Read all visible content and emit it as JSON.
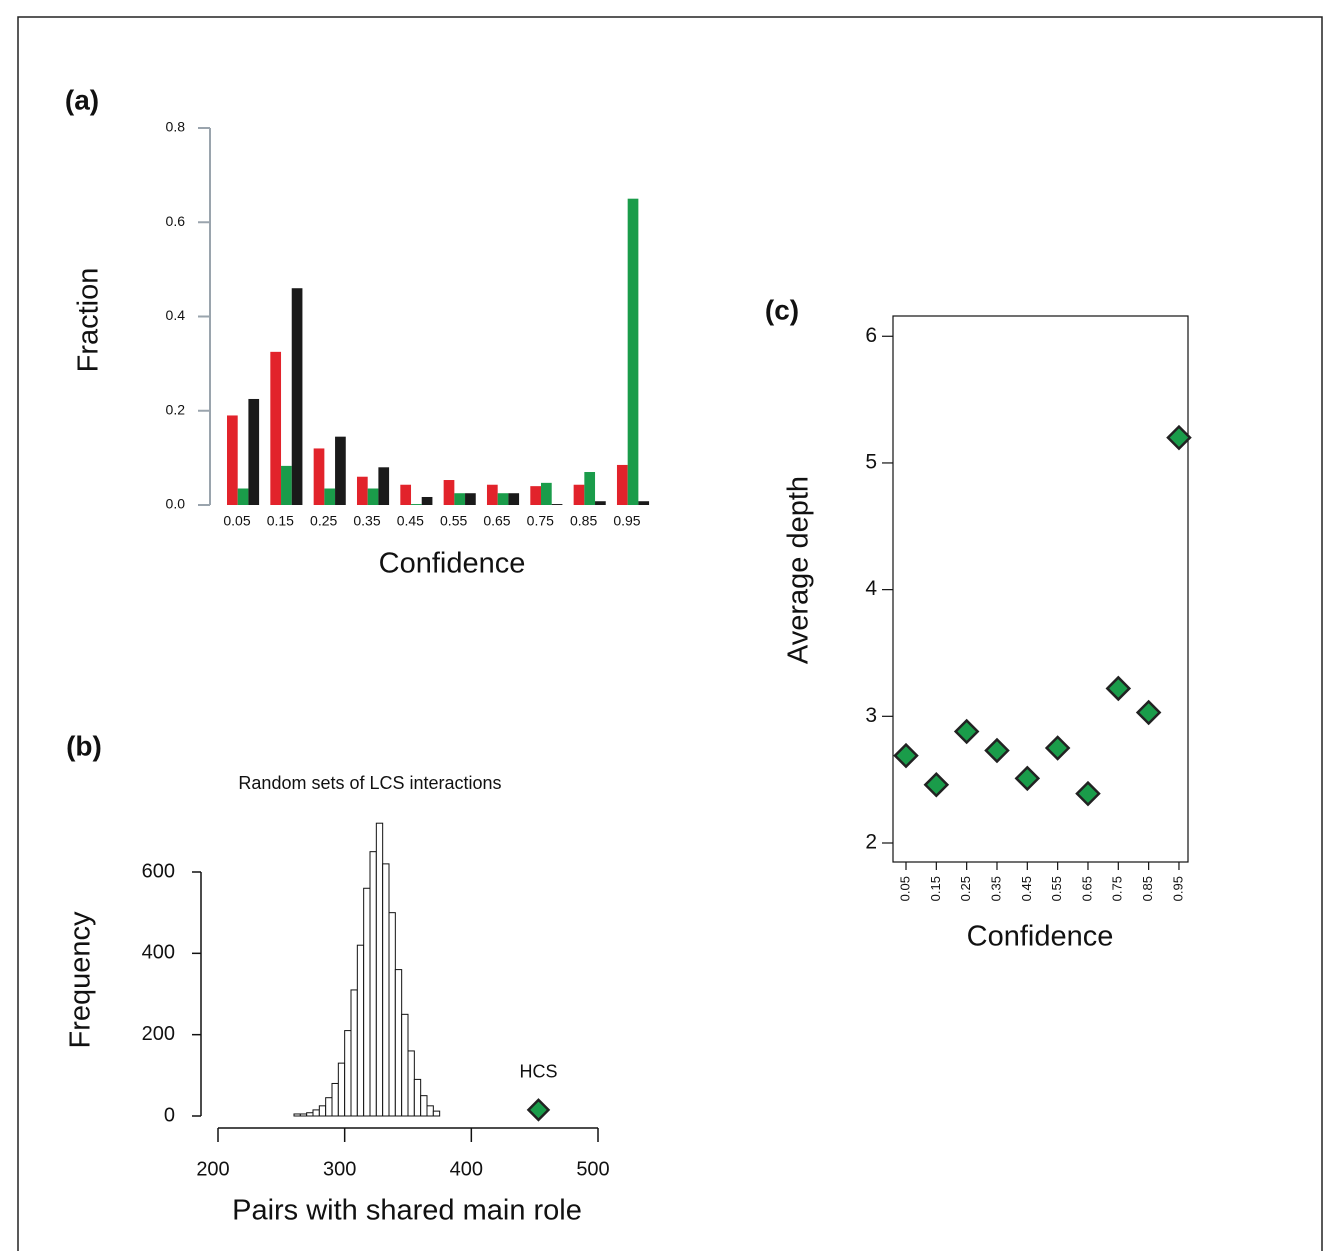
{
  "chart_data": [
    {
      "type": "bar",
      "panel_label": "(a)",
      "x_label": "Confidence",
      "y_label": "Fraction",
      "categories": [
        "0.05",
        "0.15",
        "0.25",
        "0.35",
        "0.45",
        "0.55",
        "0.65",
        "0.75",
        "0.85",
        "0.95"
      ],
      "series": [
        {
          "color": "#e2232b",
          "values": [
            0.19,
            0.325,
            0.12,
            0.06,
            0.043,
            0.053,
            0.043,
            0.04,
            0.043,
            0.085
          ]
        },
        {
          "color": "#1a9c4a",
          "values": [
            0.035,
            0.083,
            0.035,
            0.035,
            0.002,
            0.025,
            0.025,
            0.047,
            0.07,
            0.65
          ]
        },
        {
          "color": "#1a1a1a",
          "values": [
            0.225,
            0.46,
            0.145,
            0.08,
            0.017,
            0.025,
            0.025,
            0.002,
            0.008,
            0.008
          ]
        }
      ],
      "ylim": [
        0,
        0.8
      ],
      "yticks": [
        {
          "value": 0,
          "label": "0.0"
        },
        0.2,
        0.4,
        0.6,
        0.8
      ]
    },
    {
      "type": "histogram",
      "panel_label": "(b)",
      "title": "Random sets of LCS interactions",
      "x_label": "Pairs with shared main role",
      "y_label": "Frequency",
      "bins": [
        260,
        265,
        270,
        275,
        280,
        285,
        290,
        295,
        300,
        305,
        310,
        315,
        320,
        325,
        330,
        335,
        340,
        345,
        350,
        355,
        360,
        365,
        370,
        375
      ],
      "values": [
        5,
        5,
        8,
        15,
        25,
        45,
        80,
        130,
        210,
        310,
        420,
        560,
        650,
        720,
        620,
        500,
        360,
        250,
        160,
        90,
        50,
        25,
        12
      ],
      "color": "#ffffff",
      "annotations": [
        {
          "text": "HCS",
          "x": 453,
          "y": 15,
          "color": "#1a9c4a"
        }
      ],
      "xlim": [
        200,
        500
      ],
      "xticks": [
        200,
        300,
        400,
        500
      ],
      "ylim": [
        0,
        740
      ],
      "yticks": [
        0,
        200,
        400,
        600
      ]
    },
    {
      "type": "scatter",
      "panel_label": "(c)",
      "x_label": "Confidence",
      "y_label": "Average depth",
      "categories": [
        "0.05",
        "0.15",
        "0.25",
        "0.35",
        "0.45",
        "0.55",
        "0.65",
        "0.75",
        "0.85",
        "0.95"
      ],
      "values": [
        2.69,
        2.46,
        2.88,
        2.73,
        2.51,
        2.75,
        2.39,
        3.22,
        3.03,
        5.2
      ],
      "color": "#1a9c4a",
      "ylim": [
        1.85,
        6.16
      ],
      "yticks": [
        2,
        3,
        4,
        5,
        6
      ]
    }
  ]
}
